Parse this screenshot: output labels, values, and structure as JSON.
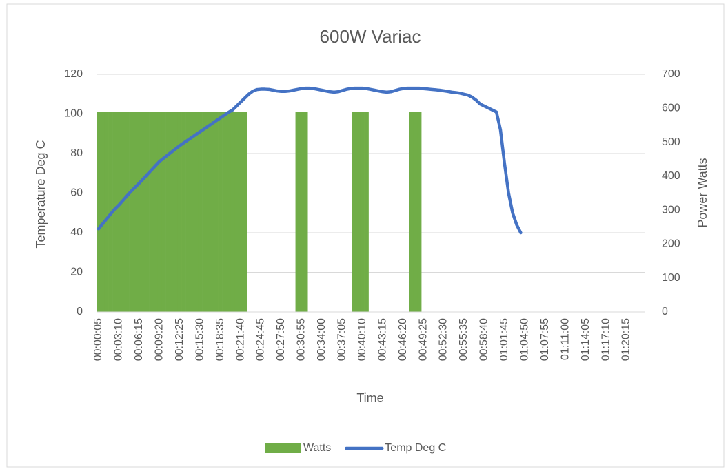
{
  "chart_data": {
    "type": "combo",
    "title": "600W Variac",
    "x_label": "Time",
    "y_label": "Temperature Deg C",
    "y2_label": "Power Watts",
    "categories": [
      "00:00:05",
      null,
      null,
      null,
      null,
      "00:03:10",
      null,
      null,
      null,
      null,
      "00:06:15",
      null,
      null,
      null,
      null,
      "00:09:20",
      null,
      null,
      null,
      null,
      "00:12:25",
      null,
      null,
      null,
      null,
      "00:15:30",
      null,
      null,
      null,
      null,
      "00:18:35",
      null,
      null,
      null,
      null,
      "00:21:40",
      null,
      null,
      null,
      null,
      "00:24:45",
      null,
      null,
      null,
      null,
      "00:27:50",
      null,
      null,
      null,
      null,
      "00:30:55",
      null,
      null,
      null,
      null,
      "00:34:00",
      null,
      null,
      null,
      null,
      "00:37:05",
      null,
      null,
      null,
      null,
      "00:40:10",
      null,
      null,
      null,
      null,
      "00:43:15",
      null,
      null,
      null,
      null,
      "00:46:20",
      null,
      null,
      null,
      null,
      "00:49:25",
      null,
      null,
      null,
      null,
      "00:52:30",
      null,
      null,
      null,
      null,
      "00:55:35",
      null,
      null,
      null,
      null,
      "00:58:40",
      null,
      null,
      null,
      null,
      "01:01:45",
      null,
      null,
      null,
      null,
      "01:04:50",
      null,
      null,
      null,
      null,
      "01:07:55",
      null,
      null,
      null,
      null,
      "01:11:00",
      null,
      null,
      null,
      null,
      "01:14:05",
      null,
      null,
      null,
      null,
      "01:17:10",
      null,
      null,
      null,
      null,
      "01:20:15",
      null,
      null,
      null,
      null
    ],
    "series": [
      {
        "name": "Watts",
        "type": "bar",
        "axis": "y2",
        "color": "#70ad47",
        "values": [
          590,
          590,
          590,
          590,
          590,
          590,
          590,
          590,
          590,
          590,
          590,
          590,
          590,
          590,
          590,
          590,
          590,
          590,
          590,
          590,
          590,
          590,
          590,
          590,
          590,
          590,
          590,
          590,
          590,
          590,
          590,
          590,
          590,
          590,
          590,
          590,
          590,
          0,
          0,
          0,
          0,
          0,
          0,
          0,
          0,
          0,
          0,
          0,
          0,
          590,
          590,
          590,
          0,
          0,
          0,
          0,
          0,
          0,
          0,
          0,
          0,
          0,
          0,
          590,
          590,
          590,
          590,
          0,
          0,
          0,
          0,
          0,
          0,
          0,
          0,
          0,
          0,
          590,
          590,
          590,
          0,
          0,
          0,
          0,
          0,
          0,
          0,
          0,
          0,
          0,
          0,
          0,
          0,
          0,
          0,
          0,
          0,
          0,
          0,
          0,
          0,
          0,
          0,
          0,
          0,
          null,
          null,
          null,
          null,
          null,
          null,
          null,
          null,
          null,
          null,
          null,
          null,
          null,
          null,
          null,
          null,
          null,
          null,
          null,
          null,
          null,
          null,
          null,
          null,
          null,
          null,
          null,
          null,
          null,
          null
        ]
      },
      {
        "name": "Temp Deg C",
        "type": "line",
        "color": "#4472c4",
        "values": [
          42,
          44.5,
          47,
          49.5,
          52,
          54,
          56.3,
          58.6,
          60.9,
          63,
          65,
          67.2,
          69.4,
          71.6,
          73.8,
          76,
          77.6,
          79.2,
          80.8,
          82.4,
          84,
          85.4,
          86.8,
          88.2,
          89.6,
          91,
          92.4,
          93.8,
          95.2,
          96.6,
          98,
          99.4,
          100.8,
          102,
          104,
          106,
          108,
          110,
          111.5,
          112.3,
          112.5,
          112.5,
          112.4,
          112,
          111.6,
          111.4,
          111.4,
          111.6,
          112,
          112.4,
          112.8,
          113,
          113,
          112.8,
          112.4,
          112,
          111.6,
          111.2,
          111,
          111.2,
          111.8,
          112.4,
          112.8,
          113,
          113,
          113,
          112.8,
          112.4,
          112,
          111.6,
          111.2,
          111,
          111.2,
          111.8,
          112.4,
          112.8,
          113,
          113,
          113,
          113,
          112.8,
          112.6,
          112.4,
          112.2,
          112,
          111.7,
          111.4,
          111,
          110.8,
          110.5,
          110,
          109.5,
          108.5,
          107,
          105,
          104,
          103,
          102,
          101,
          92,
          75,
          60,
          50,
          44,
          40,
          null,
          null,
          null,
          null,
          null,
          null,
          null,
          null,
          null,
          null,
          null,
          null,
          null,
          null,
          null,
          null,
          null,
          null,
          null,
          null,
          null,
          null,
          null,
          null,
          null,
          null,
          null,
          null,
          null,
          null
        ]
      }
    ],
    "ylim": [
      0,
      120
    ],
    "yticks": [
      0,
      20,
      40,
      60,
      80,
      100,
      120
    ],
    "y2lim": [
      0,
      700
    ],
    "y2ticks": [
      0,
      100,
      200,
      300,
      400,
      500,
      600,
      700
    ],
    "grid": true,
    "legend": "bottom"
  }
}
